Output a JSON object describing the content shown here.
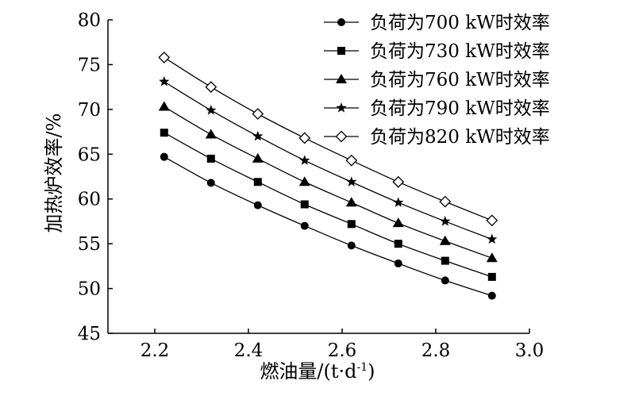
{
  "chart_data": {
    "type": "line",
    "xlabel": "燃油量/(t·d",
    "xlabel_sup": "-1",
    "xlabel_tail": ")",
    "ylabel": "加热炉效率/%",
    "xlim": [
      2.1,
      3.0
    ],
    "ylim": [
      45,
      80
    ],
    "xticks": [
      "2.2",
      "2.4",
      "2.6",
      "2.8",
      "3.0"
    ],
    "xtick_values": [
      2.2,
      2.4,
      2.6,
      2.8,
      3.0
    ],
    "yticks": [
      "45",
      "50",
      "55",
      "60",
      "65",
      "70",
      "75",
      "80"
    ],
    "ytick_values": [
      45,
      50,
      55,
      60,
      65,
      70,
      75,
      80
    ],
    "grid": false,
    "legend_position": "top-right",
    "x": [
      2.22,
      2.32,
      2.42,
      2.52,
      2.62,
      2.72,
      2.82,
      2.92
    ],
    "series": [
      {
        "name": "负荷为700 kW时效率",
        "marker": "circle",
        "values": [
          64.7,
          61.8,
          59.3,
          57.0,
          54.8,
          52.8,
          50.9,
          49.2
        ]
      },
      {
        "name": "负荷为730 kW时效率",
        "marker": "square",
        "values": [
          67.4,
          64.5,
          61.9,
          59.4,
          57.2,
          55.0,
          53.1,
          51.3
        ]
      },
      {
        "name": "负荷为760 kW时效率",
        "marker": "triangle",
        "values": [
          70.3,
          67.2,
          64.5,
          61.9,
          59.6,
          57.3,
          55.3,
          53.4
        ]
      },
      {
        "name": "负荷为790 kW时效率",
        "marker": "star",
        "values": [
          73.1,
          69.9,
          67.0,
          64.3,
          61.9,
          59.6,
          57.5,
          55.5
        ]
      },
      {
        "name": "负荷为820 kW时效率",
        "marker": "diamond",
        "values": [
          75.8,
          72.5,
          69.5,
          66.8,
          64.3,
          61.9,
          59.7,
          57.6
        ]
      }
    ]
  }
}
